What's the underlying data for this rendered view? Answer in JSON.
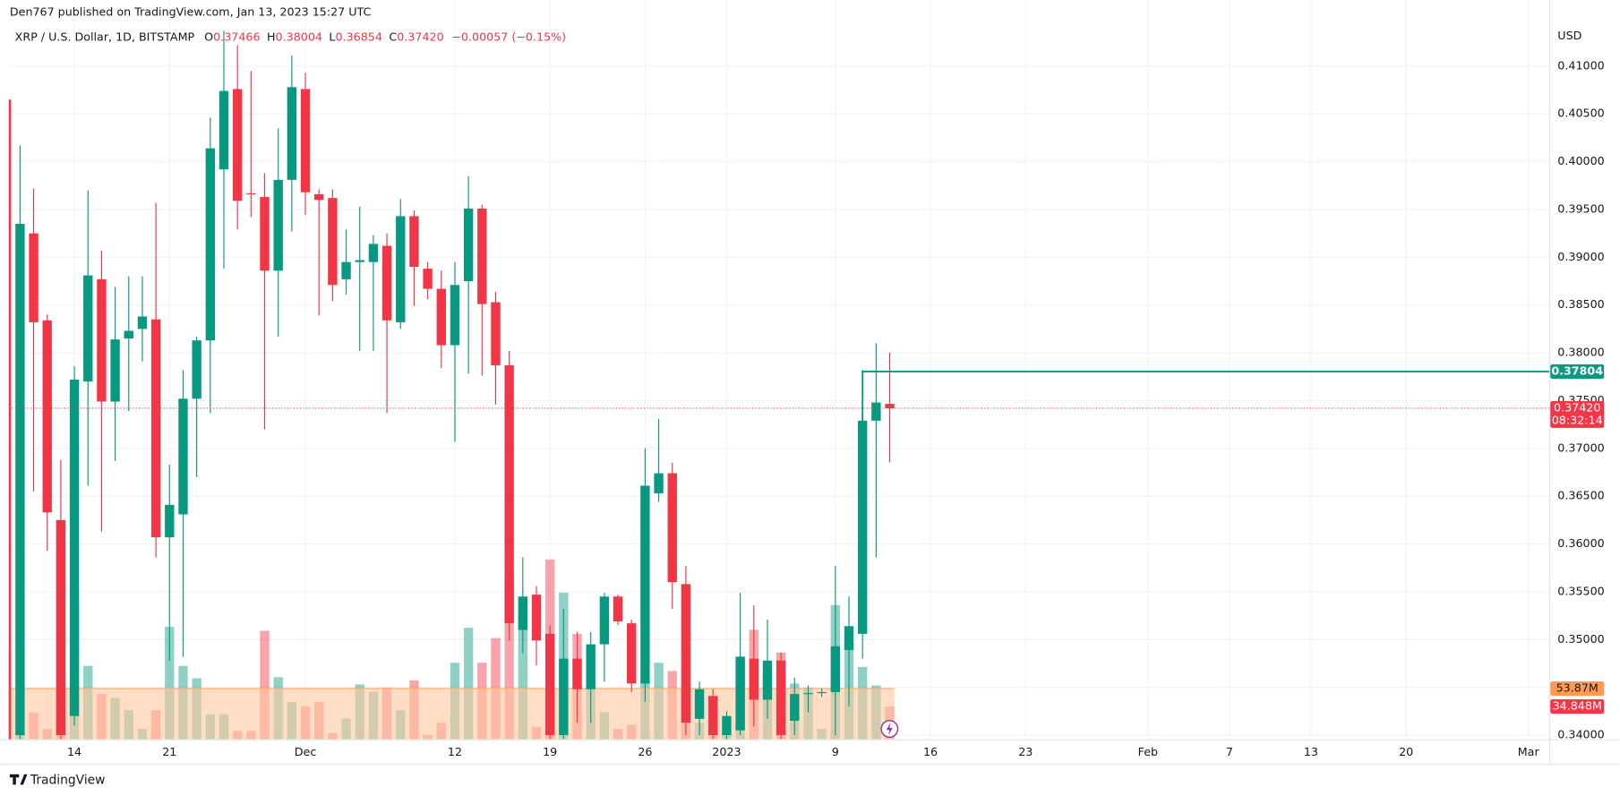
{
  "header": "Den767 published on TradingView.com, Jan 13, 2023 15:27 UTC",
  "footer": "TradingView",
  "chart_data": {
    "type": "candlestick",
    "title": "XRP / U.S. Dollar, 1D, BITSTAMP",
    "ohlc_letters": [
      "O",
      "H",
      "L",
      "C"
    ],
    "change_label": "−0.00057 (−0.15%)",
    "y_unit": "USD",
    "countdown": "08:32:14",
    "up_color": "#089981",
    "down_color": "#f23645",
    "grid": true,
    "xlim": [
      0.167,
      113.54
    ],
    "ylim": [
      0.33957,
      0.41692
    ],
    "volume_lim": [
      0,
      787
    ],
    "xticks": [
      {
        "value": 5,
        "label": "14"
      },
      {
        "value": 12,
        "label": "21"
      },
      {
        "value": 22,
        "label": "Dec"
      },
      {
        "value": 33,
        "label": "12"
      },
      {
        "value": 40,
        "label": "19"
      },
      {
        "value": 47,
        "label": "26"
      },
      {
        "value": 53,
        "label": "2023"
      },
      {
        "value": 61,
        "label": "9"
      },
      {
        "value": 68,
        "label": "16"
      },
      {
        "value": 75,
        "label": "23"
      },
      {
        "value": 84,
        "label": "Feb"
      },
      {
        "value": 90,
        "label": "7"
      },
      {
        "value": 96,
        "label": "13"
      },
      {
        "value": 103,
        "label": "20"
      },
      {
        "value": 112,
        "label": "Mar"
      }
    ],
    "yticks": [
      {
        "value": 0.34,
        "label": "0.34000"
      },
      {
        "value": 0.345,
        "label": "0.34500"
      },
      {
        "value": 0.35,
        "label": "0.35000"
      },
      {
        "value": 0.355,
        "label": "0.35500"
      },
      {
        "value": 0.36,
        "label": "0.36000"
      },
      {
        "value": 0.365,
        "label": "0.36500"
      },
      {
        "value": 0.37,
        "label": "0.37000"
      },
      {
        "value": 0.375,
        "label": "0.37500"
      },
      {
        "value": 0.38,
        "label": "0.38000"
      },
      {
        "value": 0.385,
        "label": "0.38500"
      },
      {
        "value": 0.39,
        "label": "0.39000"
      },
      {
        "value": 0.395,
        "label": "0.39500"
      },
      {
        "value": 0.4,
        "label": "0.40000"
      },
      {
        "value": 0.405,
        "label": "0.40500"
      },
      {
        "value": 0.41,
        "label": "0.41000"
      }
    ],
    "candles": [
      {
        "open": 0.4065,
        "high": 0.407,
        "low": 0.338,
        "close": 0.3395
      },
      {
        "open": 0.34,
        "high": 0.4017,
        "low": 0.3395,
        "close": 0.3935
      },
      {
        "open": 0.3925,
        "high": 0.3972,
        "low": 0.3655,
        "close": 0.3832
      },
      {
        "open": 0.3834,
        "high": 0.384,
        "low": 0.3593,
        "close": 0.3633
      },
      {
        "open": 0.3625,
        "high": 0.3688,
        "low": 0.3395,
        "close": 0.34
      },
      {
        "open": 0.342,
        "high": 0.3786,
        "low": 0.341,
        "close": 0.3772
      },
      {
        "open": 0.377,
        "high": 0.397,
        "low": 0.3661,
        "close": 0.3881
      },
      {
        "open": 0.3877,
        "high": 0.3907,
        "low": 0.3613,
        "close": 0.3749
      },
      {
        "open": 0.3749,
        "high": 0.3869,
        "low": 0.3687,
        "close": 0.3814
      },
      {
        "open": 0.3815,
        "high": 0.388,
        "low": 0.3739,
        "close": 0.3823
      },
      {
        "open": 0.3825,
        "high": 0.388,
        "low": 0.3791,
        "close": 0.3838
      },
      {
        "open": 0.3835,
        "high": 0.3957,
        "low": 0.3586,
        "close": 0.3607
      },
      {
        "open": 0.3607,
        "high": 0.3683,
        "low": 0.3478,
        "close": 0.3641
      },
      {
        "open": 0.3631,
        "high": 0.3782,
        "low": 0.3482,
        "close": 0.3752
      },
      {
        "open": 0.3752,
        "high": 0.3817,
        "low": 0.367,
        "close": 0.3813
      },
      {
        "open": 0.3813,
        "high": 0.4046,
        "low": 0.3737,
        "close": 0.4014
      },
      {
        "open": 0.3992,
        "high": 0.4137,
        "low": 0.3888,
        "close": 0.4074
      },
      {
        "open": 0.4076,
        "high": 0.4122,
        "low": 0.3929,
        "close": 0.3959
      },
      {
        "open": 0.3967,
        "high": 0.4095,
        "low": 0.3942,
        "close": 0.3966
      },
      {
        "open": 0.3963,
        "high": 0.3988,
        "low": 0.372,
        "close": 0.3886
      },
      {
        "open": 0.3886,
        "high": 0.4035,
        "low": 0.3817,
        "close": 0.3981
      },
      {
        "open": 0.3981,
        "high": 0.4111,
        "low": 0.3927,
        "close": 0.4078
      },
      {
        "open": 0.4076,
        "high": 0.4093,
        "low": 0.3944,
        "close": 0.3968
      },
      {
        "open": 0.3966,
        "high": 0.3971,
        "low": 0.3839,
        "close": 0.396
      },
      {
        "open": 0.3962,
        "high": 0.3971,
        "low": 0.3854,
        "close": 0.3871
      },
      {
        "open": 0.3877,
        "high": 0.3929,
        "low": 0.3861,
        "close": 0.3895
      },
      {
        "open": 0.3895,
        "high": 0.3953,
        "low": 0.3802,
        "close": 0.3897
      },
      {
        "open": 0.3895,
        "high": 0.3923,
        "low": 0.3802,
        "close": 0.3914
      },
      {
        "open": 0.3912,
        "high": 0.3925,
        "low": 0.3737,
        "close": 0.3834
      },
      {
        "open": 0.3832,
        "high": 0.3961,
        "low": 0.3825,
        "close": 0.3943
      },
      {
        "open": 0.3943,
        "high": 0.3949,
        "low": 0.3849,
        "close": 0.389
      },
      {
        "open": 0.3888,
        "high": 0.3895,
        "low": 0.3856,
        "close": 0.3867
      },
      {
        "open": 0.3867,
        "high": 0.3886,
        "low": 0.3784,
        "close": 0.3808
      },
      {
        "open": 0.3808,
        "high": 0.3895,
        "low": 0.3707,
        "close": 0.3871
      },
      {
        "open": 0.3875,
        "high": 0.3985,
        "low": 0.3778,
        "close": 0.3951
      },
      {
        "open": 0.3951,
        "high": 0.3955,
        "low": 0.3776,
        "close": 0.3851
      },
      {
        "open": 0.3853,
        "high": 0.3864,
        "low": 0.3746,
        "close": 0.3787
      },
      {
        "open": 0.3787,
        "high": 0.3802,
        "low": 0.3499,
        "close": 0.3517
      },
      {
        "open": 0.351,
        "high": 0.3586,
        "low": 0.3486,
        "close": 0.3545
      },
      {
        "open": 0.3547,
        "high": 0.3556,
        "low": 0.3473,
        "close": 0.3499
      },
      {
        "open": 0.3506,
        "high": 0.3515,
        "low": 0.3395,
        "close": 0.34
      },
      {
        "open": 0.34,
        "high": 0.3532,
        "low": 0.3396,
        "close": 0.348
      },
      {
        "open": 0.348,
        "high": 0.3508,
        "low": 0.3413,
        "close": 0.3448
      },
      {
        "open": 0.3448,
        "high": 0.3508,
        "low": 0.3413,
        "close": 0.3495
      },
      {
        "open": 0.3495,
        "high": 0.3549,
        "low": 0.3456,
        "close": 0.3545
      },
      {
        "open": 0.3545,
        "high": 0.3547,
        "low": 0.3515,
        "close": 0.3519
      },
      {
        "open": 0.3517,
        "high": 0.3521,
        "low": 0.3445,
        "close": 0.3454
      },
      {
        "open": 0.3454,
        "high": 0.37,
        "low": 0.3435,
        "close": 0.3661
      },
      {
        "open": 0.3653,
        "high": 0.3731,
        "low": 0.3644,
        "close": 0.3674
      },
      {
        "open": 0.3674,
        "high": 0.3685,
        "low": 0.3532,
        "close": 0.356
      },
      {
        "open": 0.3558,
        "high": 0.3577,
        "low": 0.34,
        "close": 0.3413
      },
      {
        "open": 0.3417,
        "high": 0.3456,
        "low": 0.34,
        "close": 0.3448
      },
      {
        "open": 0.3441,
        "high": 0.3448,
        "low": 0.3396,
        "close": 0.34
      },
      {
        "open": 0.34,
        "high": 0.3425,
        "low": 0.3396,
        "close": 0.342
      },
      {
        "open": 0.3405,
        "high": 0.3549,
        "low": 0.34,
        "close": 0.3482
      },
      {
        "open": 0.348,
        "high": 0.3536,
        "low": 0.3409,
        "close": 0.3437
      },
      {
        "open": 0.3437,
        "high": 0.3521,
        "low": 0.3417,
        "close": 0.3478
      },
      {
        "open": 0.3478,
        "high": 0.3486,
        "low": 0.3396,
        "close": 0.34
      },
      {
        "open": 0.3415,
        "high": 0.346,
        "low": 0.34,
        "close": 0.3443
      },
      {
        "open": 0.3443,
        "high": 0.3452,
        "low": 0.3424,
        "close": 0.3444
      },
      {
        "open": 0.3444,
        "high": 0.3449,
        "low": 0.344,
        "close": 0.3445
      },
      {
        "open": 0.3445,
        "high": 0.3577,
        "low": 0.34,
        "close": 0.3493
      },
      {
        "open": 0.3489,
        "high": 0.3545,
        "low": 0.343,
        "close": 0.3514
      },
      {
        "open": 0.3506,
        "high": 0.3782,
        "low": 0.348,
        "close": 0.3729
      },
      {
        "open": 0.3729,
        "high": 0.381,
        "low": 0.3586,
        "close": 0.3748
      },
      {
        "open": 0.37466,
        "high": 0.38004,
        "low": 0.36854,
        "close": 0.3742
      }
    ],
    "volumes": [
      92.3,
      17.6,
      28.6,
      11.0,
      13.2,
      149.5,
      78.1,
      48.4,
      44.0,
      30.8,
      11.0,
      30.8,
      119.8,
      78.1,
      64.9,
      26.4,
      26.4,
      8.8,
      8.8,
      115.4,
      66.0,
      39.6,
      35.2,
      39.6,
      6.6,
      22.0,
      58.3,
      50.6,
      55.0,
      30.8,
      62.7,
      4.4,
      17.6,
      81.4,
      118.7,
      81.4,
      107.7,
      175.9,
      129.7,
      13.2,
      191.3,
      156.1,
      112.1,
      59.4,
      28.6,
      11.0,
      15.4,
      61.6,
      81.4,
      72.6,
      92.3,
      17.6,
      11.0,
      4.4,
      88.0,
      116.5,
      72.6,
      92.3,
      59.4,
      55.0,
      11.0,
      142.9,
      105.5,
      77.0,
      57.2,
      34.848
    ],
    "value_labels": {
      "open": "0.37466",
      "high": "0.38004",
      "low": "0.36854",
      "close": "0.37420",
      "volume": "34.848M"
    },
    "volume_ma": {
      "value": 53.87,
      "label": "53.87M"
    },
    "level": {
      "value": 0.37804,
      "label": "0.37804"
    }
  }
}
